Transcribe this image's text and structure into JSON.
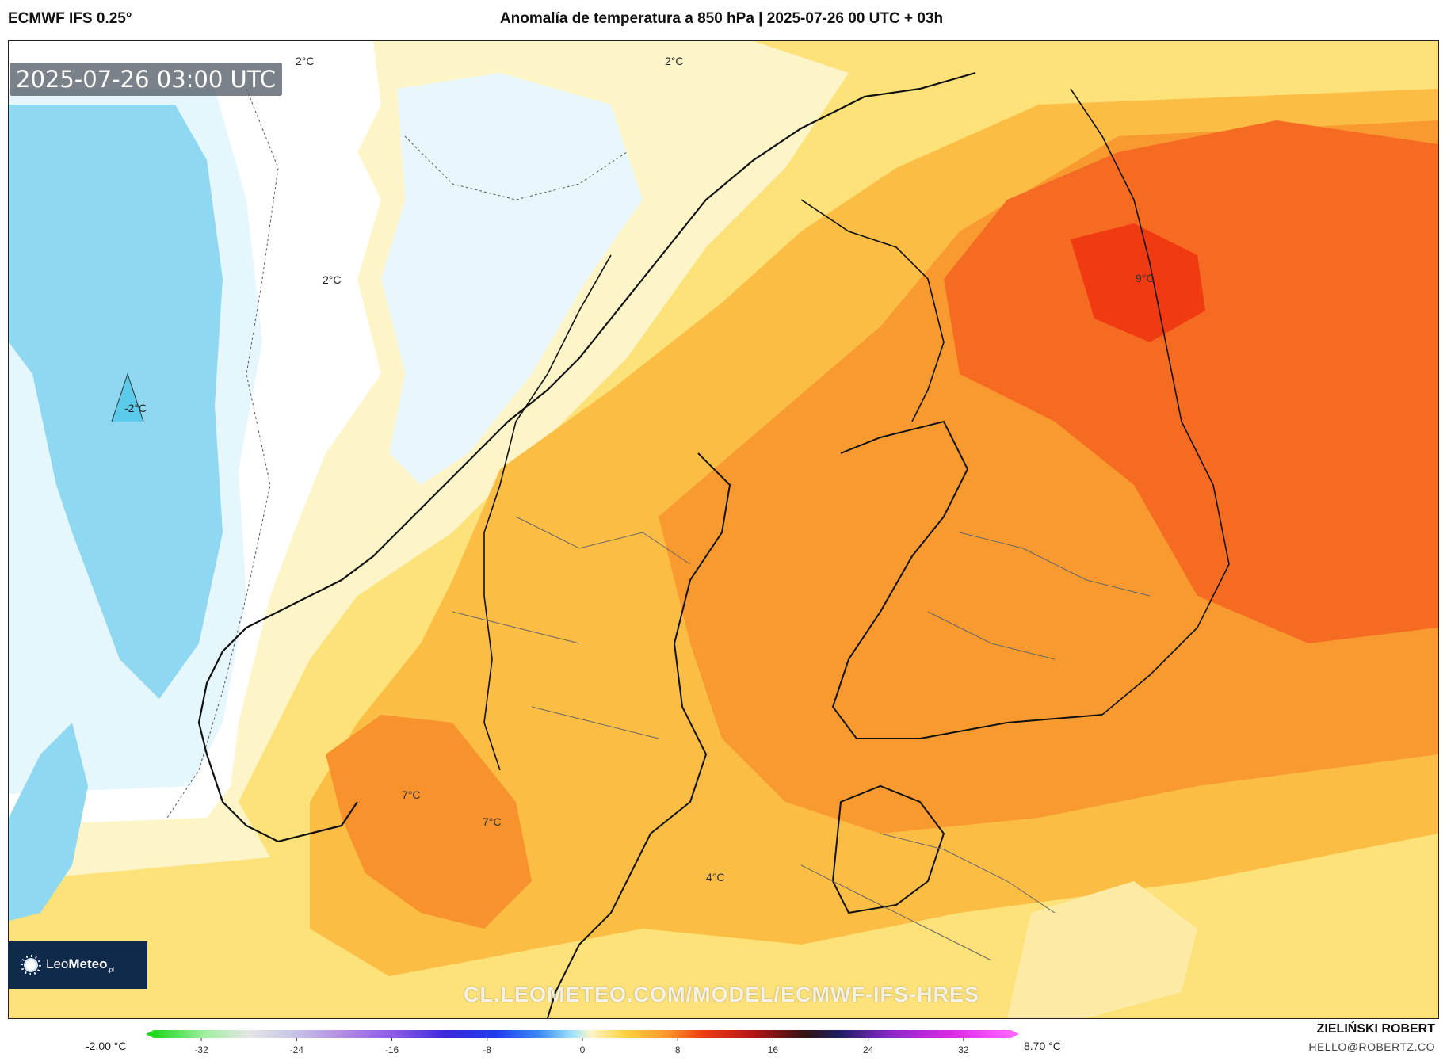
{
  "header": {
    "model": "ECMWF IFS 0.25°",
    "title": "Anomalía de temperatura a 850 hPa | 2025-07-26 00 UTC + 03h"
  },
  "map": {
    "valid_time": "2025-07-26 03:00 UTC",
    "watermark": "CL.LEOMETEO.COM/MODEL/ECMWF-IFS-HRES",
    "contour_labels": [
      "2°C",
      "2°C",
      "2°C",
      "-2°C",
      "9°C",
      "7°C",
      "7°C",
      "4°C"
    ],
    "colors": {
      "negative_blue": "#8ed8f2",
      "light_blue": "#e6f6fd",
      "pale_yellow": "#fdf3c2",
      "yellow": "#fddc4c",
      "orange": "#fcb43a",
      "deep_orange": "#f98c2c",
      "red_orange": "#f55d1d",
      "red": "#f03a12"
    },
    "icon": "coastline-and-borders"
  },
  "logo": {
    "name_light": "Leo",
    "name_bold": "Meteo",
    "suffix": ".pl",
    "icon": "sun-icon"
  },
  "colorbar": {
    "min_label": "-2.00 °C",
    "max_label": "8.70 °C",
    "ticks": [
      "-32",
      "-24",
      "-16",
      "-8",
      "0",
      "8",
      "16",
      "24",
      "32"
    ],
    "tick_values": [
      -32,
      -24,
      -16,
      -8,
      0,
      8,
      16,
      24,
      32
    ],
    "range": [
      -36,
      36
    ]
  },
  "credits": {
    "author": "ZIELIŃSKI ROBERT",
    "email": "HELLO@ROBERTZ.CO"
  }
}
